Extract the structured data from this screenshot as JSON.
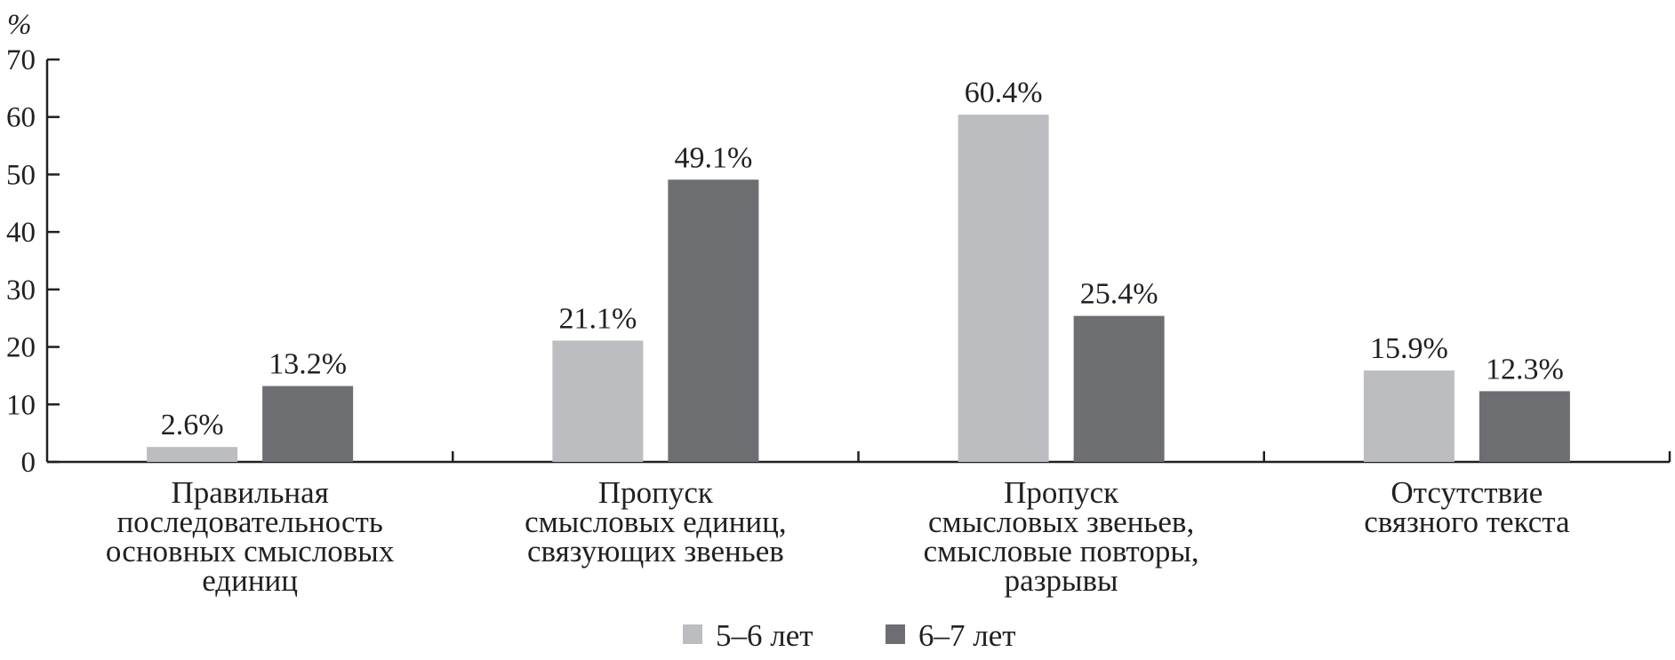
{
  "chart_data": {
    "type": "bar",
    "title": "",
    "xlabel": "",
    "ylabel": "%",
    "ylim": [
      0,
      70
    ],
    "yticks": [
      "0",
      "10",
      "20",
      "30",
      "40",
      "50",
      "60",
      "70"
    ],
    "categories": [
      [
        "Правильная",
        "последовательность",
        "основных смысловых",
        "единиц"
      ],
      [
        "Пропуск",
        "смысловых единиц,",
        "связующих звеньев"
      ],
      [
        "Пропуск",
        "смысловых звеньев,",
        "смысловые повторы,",
        "разрывы"
      ],
      [
        "Отсутствие",
        "связного текста"
      ]
    ],
    "series": [
      {
        "name": "5–6 лет",
        "color": "#bcbdc0",
        "values": [
          2.6,
          21.1,
          60.4,
          15.9
        ],
        "labels": [
          "2.6%",
          "21.1%",
          "60.4%",
          "15.9%"
        ]
      },
      {
        "name": "6–7 лет",
        "color": "#6d6e72",
        "values": [
          13.2,
          49.1,
          25.4,
          12.3
        ],
        "labels": [
          "13.2%",
          "49.1%",
          "25.4%",
          "12.3%"
        ]
      }
    ],
    "grid": false,
    "legend_position": "bottom-center"
  }
}
